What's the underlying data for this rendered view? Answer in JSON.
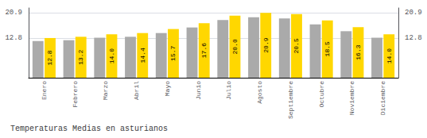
{
  "chart_data": {
    "type": "bar",
    "title": "Temperaturas Medias en asturianos",
    "categories": [
      "Enero",
      "Febrero",
      "Marzo",
      "Abril",
      "Mayo",
      "Junio",
      "Julio",
      "Agosto",
      "Septiembre",
      "Octubre",
      "Noviembre",
      "Diciembre"
    ],
    "series": [
      {
        "color": "#AAAAAA",
        "values": [
          11.8,
          12.1,
          12.9,
          13.2,
          14.4,
          16.2,
          18.6,
          19.5,
          19.1,
          17.2,
          15.0,
          12.9
        ]
      },
      {
        "color": "#FFD700",
        "values": [
          12.8,
          13.2,
          14.0,
          14.4,
          15.7,
          17.6,
          20.0,
          20.9,
          20.5,
          18.5,
          16.3,
          14.0
        ],
        "data_labels": true,
        "value_labels": [
          "12.8",
          "13.2",
          "14.0",
          "14.4",
          "15.7",
          "17.6",
          "20.0",
          "20.9",
          "20.5",
          "18.5",
          "16.3",
          "14.0"
        ]
      }
    ],
    "ylim": [
      0,
      22.5
    ],
    "yticks": [
      12.8,
      20.9
    ],
    "y2lim": [
      0,
      22.5
    ],
    "y2ticks": [
      12.8,
      20.9
    ],
    "grid": true
  }
}
